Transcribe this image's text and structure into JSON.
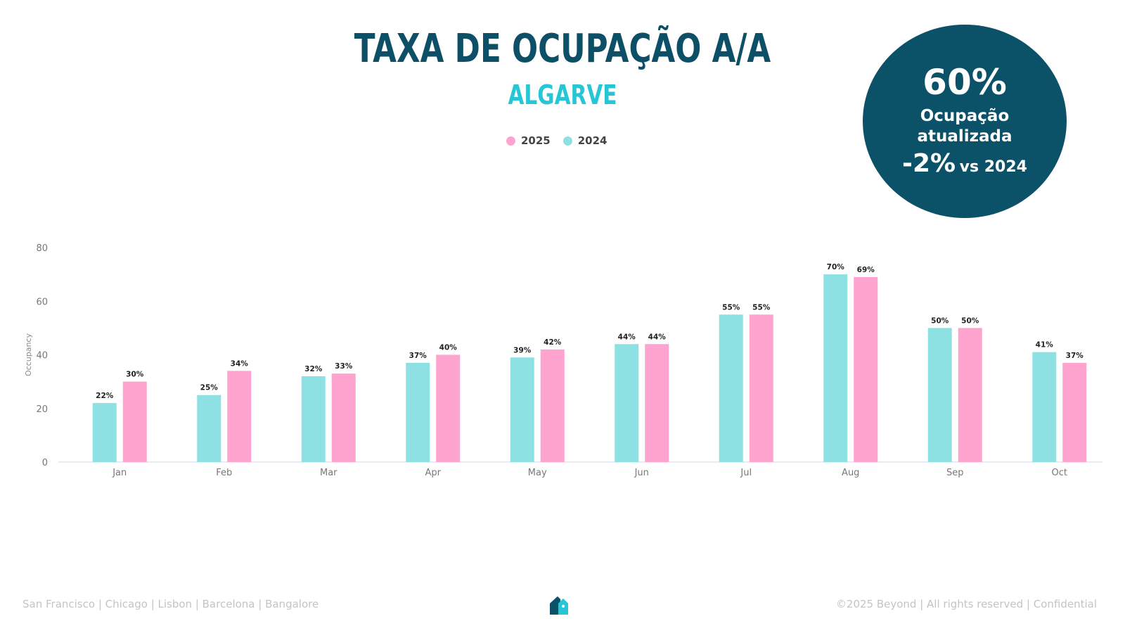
{
  "header": {
    "title": "TAXA DE OCUPAÇÃO A/A",
    "subtitle": "ALGARVE"
  },
  "kpi": {
    "value": "60%",
    "label_line1": "Ocupação",
    "label_line2": "atualizada",
    "change": "-2%",
    "change_suffix": "vs 2024"
  },
  "footer": {
    "cities": "San Francisco | Chicago | Lisbon | Barcelona | Bangalore",
    "copyright": "©2025 Beyond | All rights reserved | Confidential"
  },
  "logo": {
    "icon": "house-tag-icon"
  },
  "colors": {
    "title": "#0d4f66",
    "subtitle": "#26c6d6",
    "series_2025": "#ffa3cf",
    "series_2024": "#8ee1e3",
    "kpi_bg": "#0b5168"
  },
  "chart_data": {
    "type": "bar",
    "ylabel": "Occupancy",
    "xlabel": "",
    "ylim": [
      0,
      80
    ],
    "yticks": [
      0,
      20,
      40,
      60,
      80
    ],
    "grid": false,
    "legend": "top-center",
    "categories": [
      "Jan",
      "Feb",
      "Mar",
      "Apr",
      "May",
      "Jun",
      "Jul",
      "Aug",
      "Sep",
      "Oct"
    ],
    "series": [
      {
        "name": "2024",
        "values": [
          22,
          25,
          32,
          37,
          39,
          44,
          55,
          70,
          50,
          41
        ],
        "labels": [
          "22%",
          "25%",
          "32%",
          "37%",
          "39%",
          "44%",
          "55%",
          "70%",
          "50%",
          "41%"
        ]
      },
      {
        "name": "2025",
        "values": [
          30,
          34,
          33,
          40,
          42,
          44,
          55,
          69,
          50,
          37
        ],
        "labels": [
          "30%",
          "34%",
          "33%",
          "40%",
          "42%",
          "44%",
          "55%",
          "69%",
          "50%",
          "37%"
        ]
      }
    ],
    "legend_order": [
      "2025",
      "2024"
    ]
  }
}
